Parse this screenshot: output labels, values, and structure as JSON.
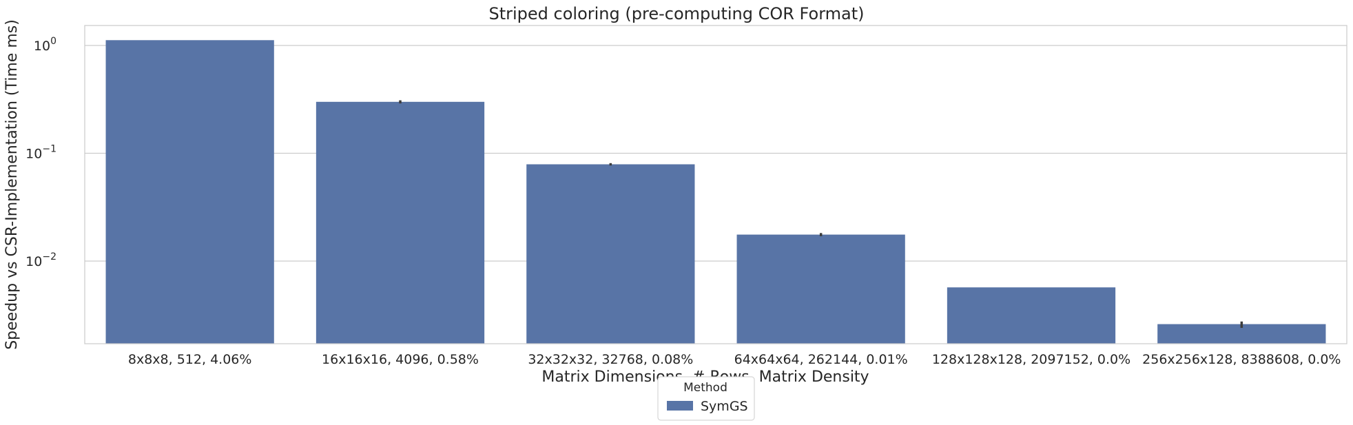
{
  "chart_data": {
    "type": "bar",
    "title": "Striped coloring (pre-computing COR Format)",
    "xlabel": "Matrix Dimensions, # Rows, Matrix Density",
    "ylabel": "Speedup vs CSR-Implementation (Time ms)",
    "yscale": "log",
    "ylim": [
      0.0017,
      1.5
    ],
    "yticks": [
      {
        "value": 1,
        "label": "10^0"
      },
      {
        "value": 0.1,
        "label": "10^-1"
      },
      {
        "value": 0.01,
        "label": "10^-2"
      }
    ],
    "grid": true,
    "categories": [
      "8x8x8, 512, 4.06%",
      "16x16x16, 4096, 0.58%",
      "32x32x32, 32768, 0.08%",
      "64x64x64, 262144, 0.01%",
      "128x128x128, 2097152, 0.0%",
      "256x256x128, 8388608, 0.0%"
    ],
    "series": [
      {
        "name": "SymGS",
        "color": "#5874a6",
        "values": [
          1.12,
          0.3,
          0.079,
          0.0176,
          0.0057,
          0.0026
        ],
        "error_high": [
          null,
          0.31,
          0.081,
          0.0182,
          null,
          0.00275
        ],
        "error_low": [
          null,
          0.29,
          0.077,
          0.017,
          null,
          0.0024
        ]
      }
    ],
    "legend": {
      "title": "Method",
      "placement": "bottom-center"
    }
  }
}
